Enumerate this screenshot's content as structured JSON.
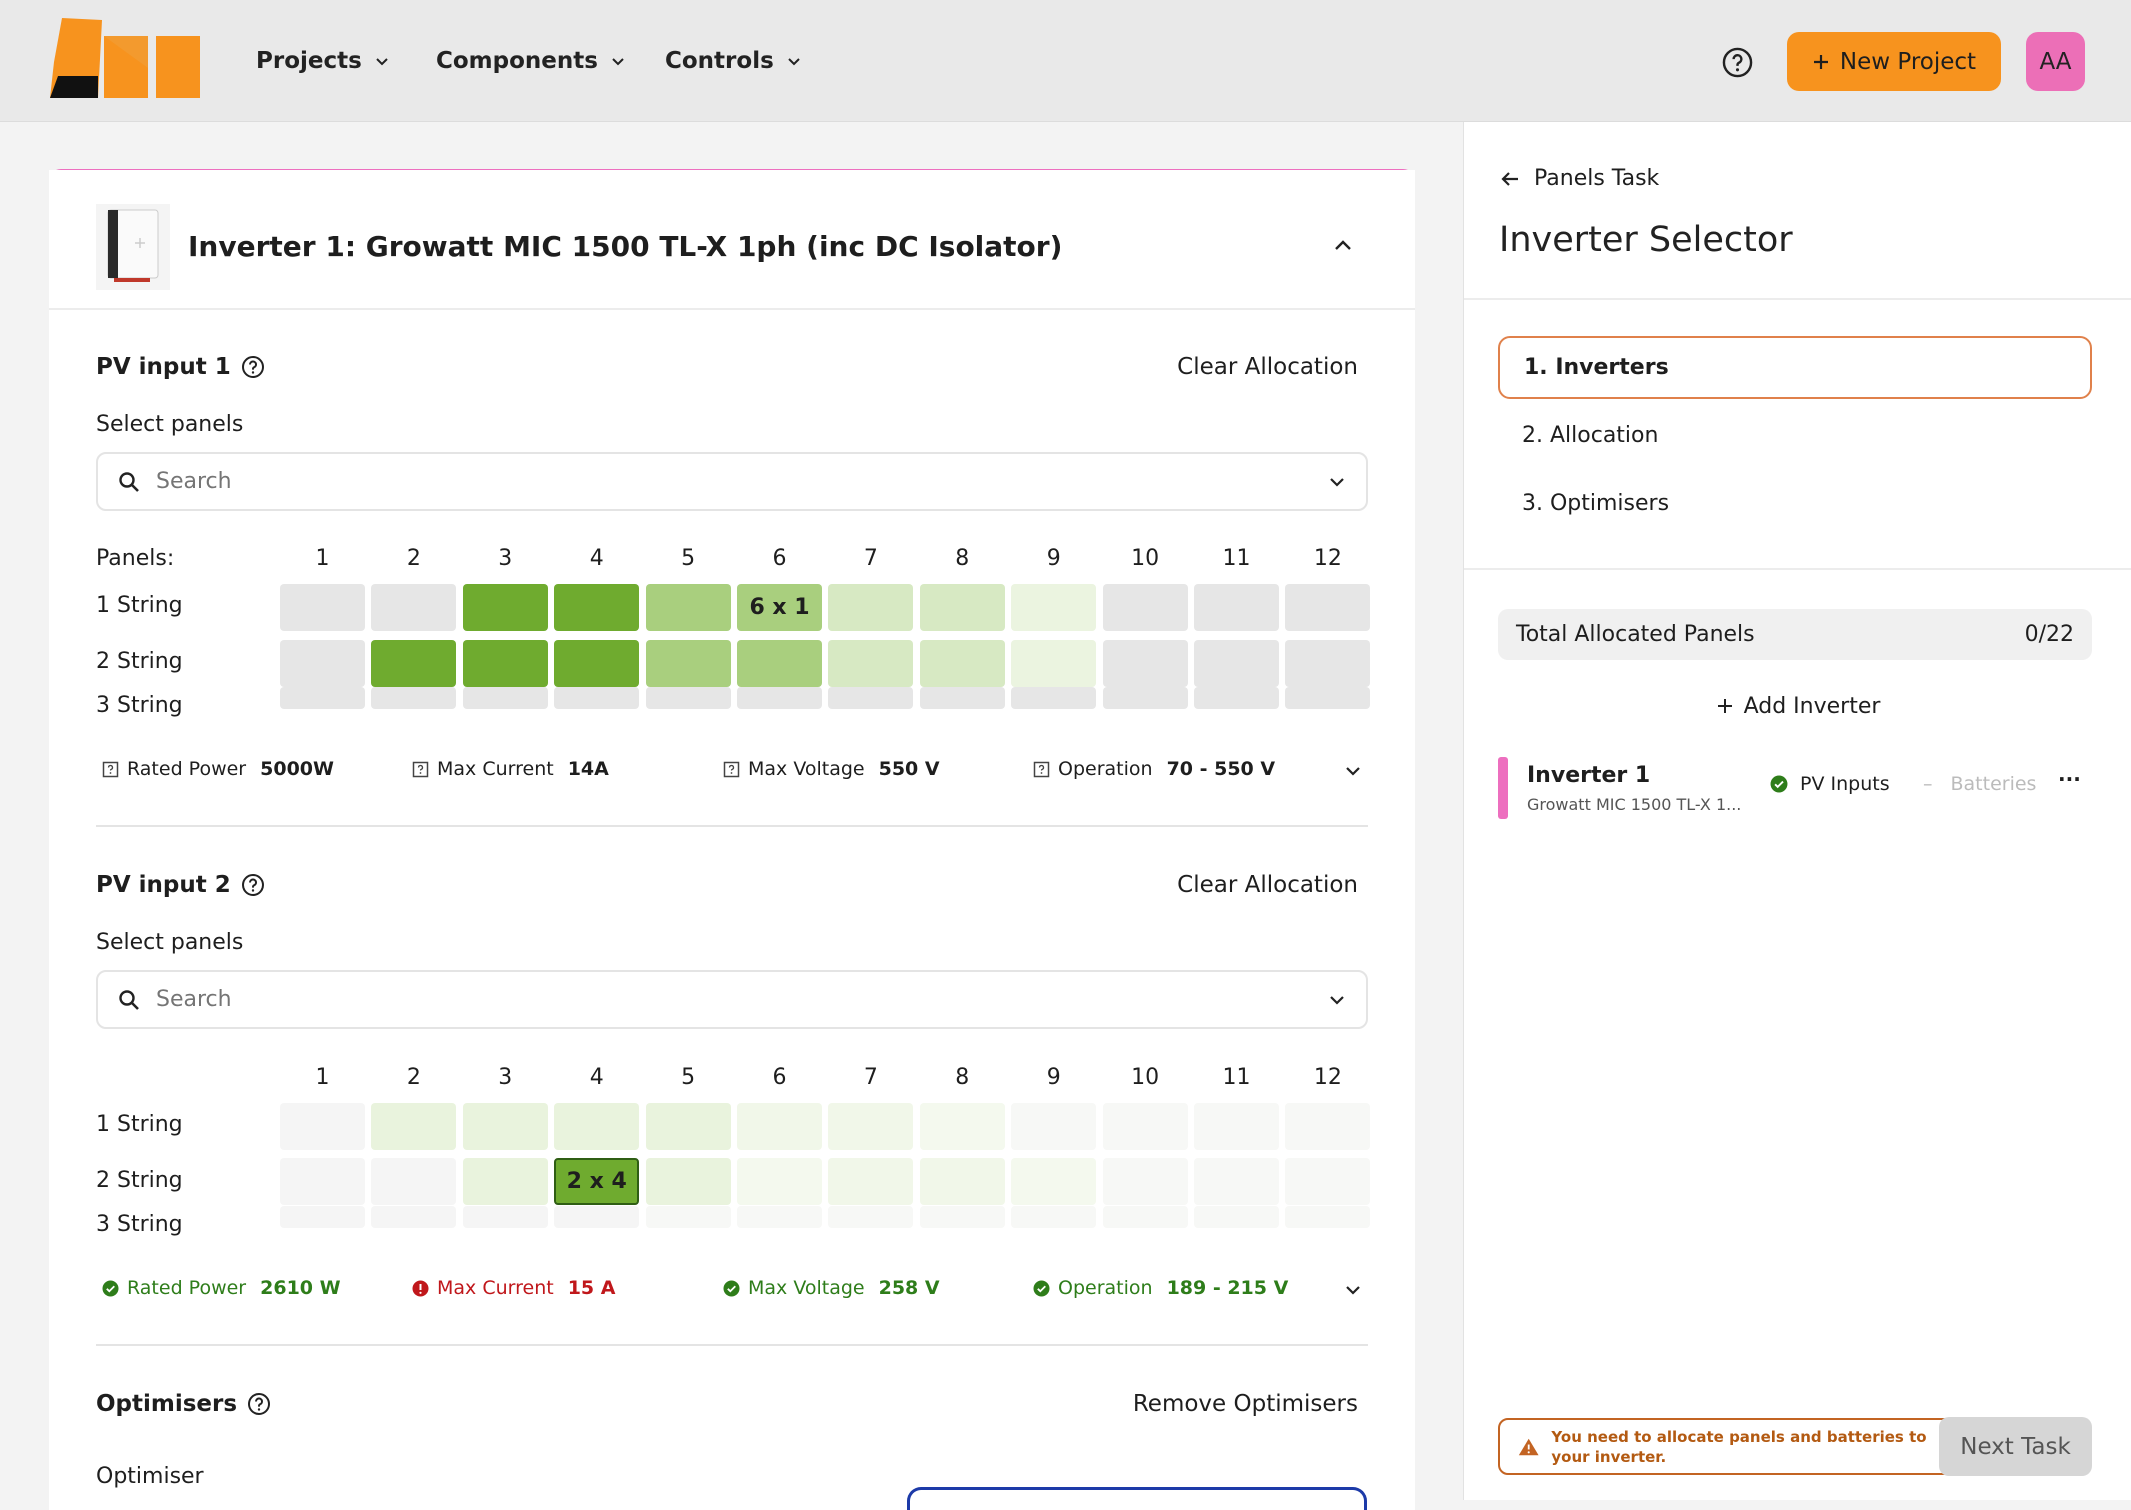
{
  "nav": {
    "projects": "Projects",
    "components": "Components",
    "controls": "Controls",
    "new_project": "New Project",
    "avatar": "AA"
  },
  "inverter": {
    "title": "Inverter 1: Growatt MIC 1500 TL-X 1ph (inc DC Isolator)"
  },
  "pv1": {
    "title": "PV input 1",
    "action": "Clear Allocation",
    "select_label": "Select panels",
    "search_placeholder": "Search",
    "panels_label": "Panels:",
    "columns": [
      "1",
      "2",
      "3",
      "4",
      "5",
      "6",
      "7",
      "8",
      "9",
      "10",
      "11",
      "12"
    ],
    "rows": [
      "1 String",
      "2 String",
      "3 String"
    ],
    "cell_label": "6 x 1",
    "metrics": {
      "rated_power_label": "Rated Power",
      "rated_power": "5000W",
      "max_current_label": "Max Current",
      "max_current": "14A",
      "max_voltage_label": "Max Voltage",
      "max_voltage": "550 V",
      "operation_label": "Operation",
      "operation": "70 - 550 V"
    }
  },
  "pv2": {
    "title": "PV input 2",
    "action": "Clear Allocation",
    "select_label": "Select panels",
    "search_placeholder": "Search",
    "columns": [
      "1",
      "2",
      "3",
      "4",
      "5",
      "6",
      "7",
      "8",
      "9",
      "10",
      "11",
      "12"
    ],
    "rows": [
      "1 String",
      "2 String",
      "3 String"
    ],
    "cell_label": "2 x 4",
    "metrics": {
      "rated_power_label": "Rated Power",
      "rated_power": "2610 W",
      "max_current_label": "Max Current",
      "max_current": "15 A",
      "max_voltage_label": "Max Voltage",
      "max_voltage": "258 V",
      "operation_label": "Operation",
      "operation": "189 - 215 V"
    }
  },
  "optimisers": {
    "title": "Optimisers",
    "action": "Remove Optimisers",
    "label": "Optimiser"
  },
  "sidebar": {
    "back": "Panels Task",
    "title": "Inverter Selector",
    "steps": [
      "1. Inverters",
      "2. Allocation",
      "3. Optimisers"
    ],
    "total_label": "Total Allocated Panels",
    "total_value": "0/22",
    "add_inverter": "Add Inverter",
    "inverter_name": "Inverter 1",
    "inverter_sub": "Growatt MIC 1500 TL-X 1...",
    "pv_inputs": "PV Inputs",
    "batteries": "Batteries",
    "more": "···",
    "warning": "You need to allocate panels and batteries to your inverter.",
    "next_task": "Next Task"
  },
  "colors": {
    "accent_orange": "#f7931e",
    "pink": "#ed6fbf",
    "green_dark": "#6fab2f",
    "green_mid": "#a9cf7e",
    "error_red": "#c0171b",
    "success_green": "#2e7d1a"
  }
}
